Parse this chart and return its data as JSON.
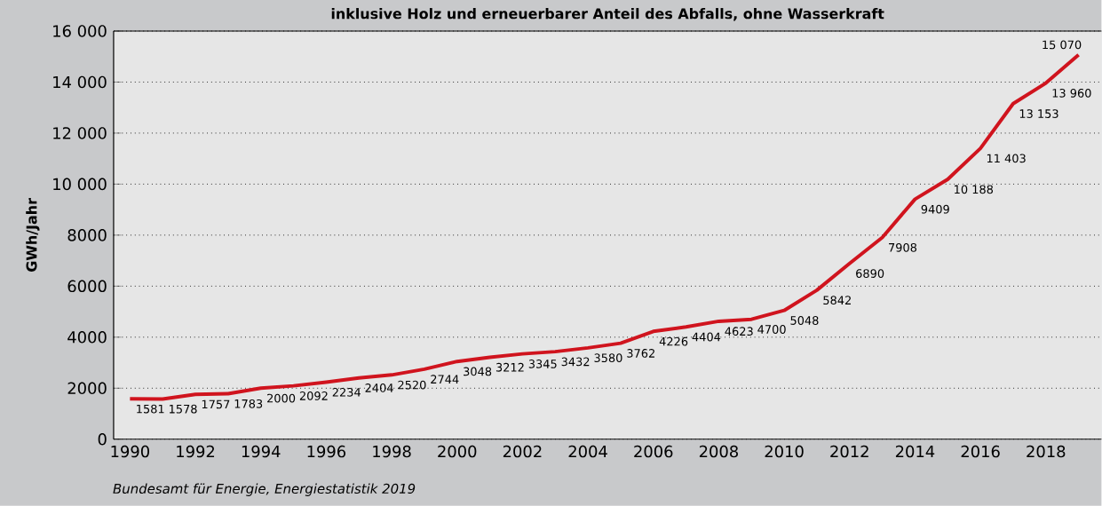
{
  "chart_data": {
    "type": "line",
    "title": "inklusive Holz und erneuerbarer Anteil des Abfalls, ohne Wasserkraft",
    "ylabel": "GWh/Jahr",
    "x": [
      1990,
      1991,
      1992,
      1993,
      1994,
      1995,
      1996,
      1997,
      1998,
      1999,
      2000,
      2001,
      2002,
      2003,
      2004,
      2005,
      2006,
      2007,
      2008,
      2009,
      2010,
      2011,
      2012,
      2013,
      2014,
      2015,
      2016,
      2017,
      2018,
      2019
    ],
    "series": [
      {
        "color": "#d0141e",
        "values": [
          1581,
          1578,
          1757,
          1783,
          2000,
          2092,
          2234,
          2404,
          2520,
          2744,
          3048,
          3212,
          3345,
          3432,
          3580,
          3762,
          4226,
          4404,
          4623,
          4700,
          5048,
          5842,
          6890,
          7908,
          9409,
          10188,
          11403,
          13153,
          13960,
          15070
        ],
        "value_labels": [
          "1581",
          "1578",
          "1757",
          "1783",
          "2000",
          "2092",
          "2234",
          "2404",
          "2520",
          "2744",
          "3048",
          "3212",
          "3345",
          "3432",
          "3580",
          "3762",
          "4226",
          "4404",
          "4623",
          "4700",
          "5048",
          "5842",
          "6890",
          "7908",
          "9409",
          "10 188",
          "11 403",
          "13 153",
          "13 960",
          "15 070"
        ]
      }
    ],
    "xlim": [
      1989.5,
      2019.7
    ],
    "xticks": [
      1990,
      1992,
      1994,
      1996,
      1998,
      2000,
      2002,
      2004,
      2006,
      2008,
      2010,
      2012,
      2014,
      2016,
      2018
    ],
    "ylim": [
      0,
      16000
    ],
    "yticks": [
      0,
      2000,
      4000,
      6000,
      8000,
      {
        "value": 10000,
        "label": "10 000"
      },
      {
        "value": 12000,
        "label": "12 000"
      },
      {
        "value": 14000,
        "label": "14 000"
      },
      {
        "value": 16000,
        "label": "16 000"
      }
    ],
    "grid": "y",
    "marker": "none",
    "line_style": "solid",
    "annotations": [
      "*Bundesamt für Energie, Energiestatistik 2019*"
    ]
  }
}
